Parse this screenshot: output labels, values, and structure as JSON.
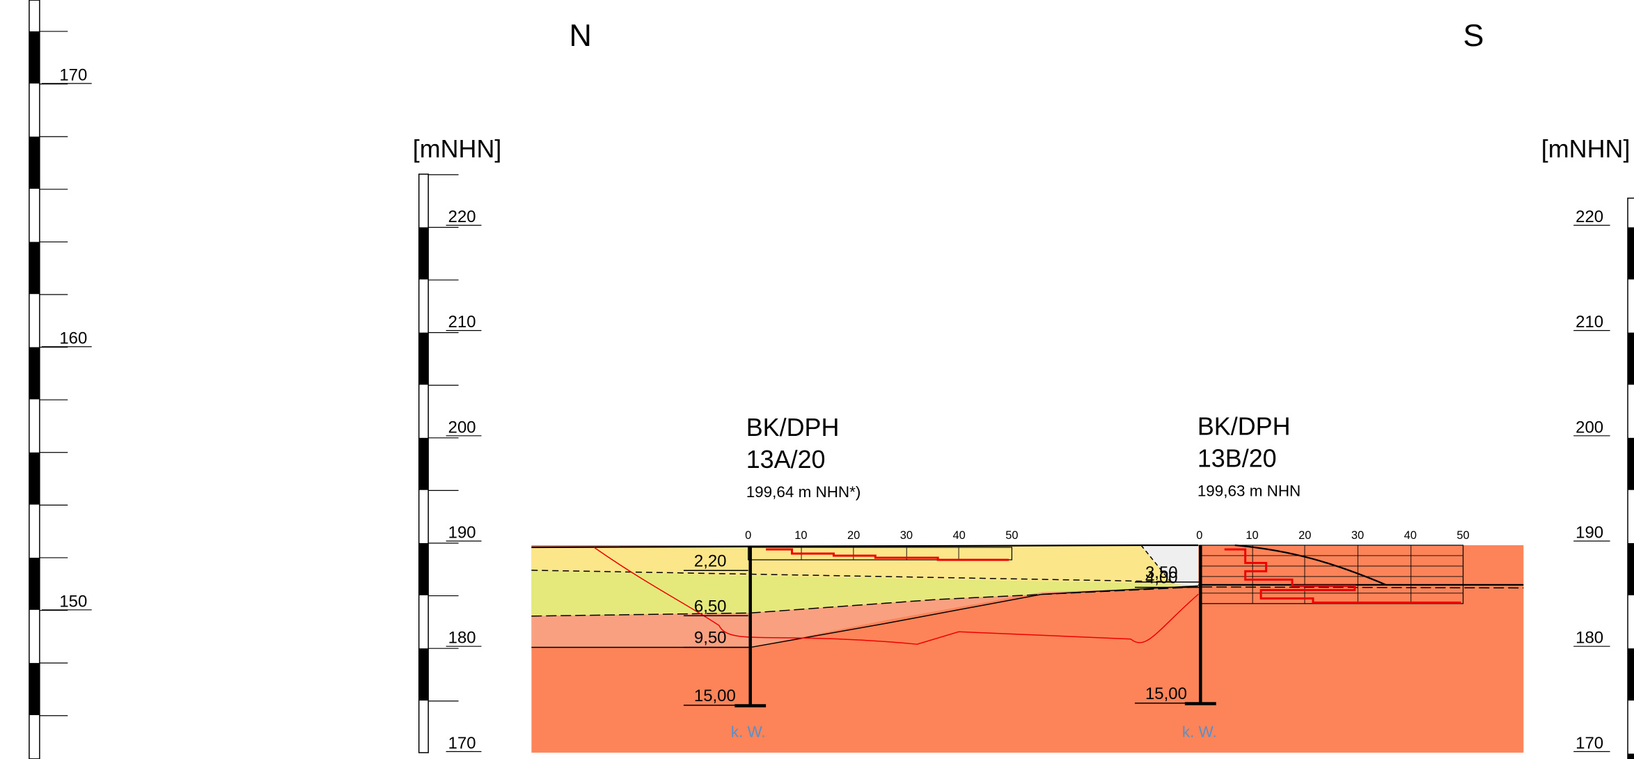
{
  "header": {
    "north": "N",
    "south": "S"
  },
  "scales": [
    {
      "labels": [
        170,
        160,
        150
      ]
    },
    {
      "unit": "[mNHN]",
      "labels": [
        220,
        210,
        200,
        190,
        180,
        170
      ]
    },
    {
      "unit": "[mNHN]",
      "labels": [
        220,
        210,
        200,
        190,
        180,
        170
      ]
    }
  ],
  "boreholes": [
    {
      "kind": "BK/DPH",
      "id": "13A/20",
      "elevation": "199,64 m NHN*)",
      "dph_ticks": [
        0,
        10,
        20,
        30,
        40,
        50
      ],
      "depths": [
        "2,20",
        "6,50",
        "9,50",
        "15,00"
      ],
      "groundwater": "k. W."
    },
    {
      "kind": "BK/DPH",
      "id": "13B/20",
      "elevation": "199,63 m NHN",
      "dph_ticks": [
        0,
        10,
        20,
        30,
        40,
        50
      ],
      "depths": [
        "3,50",
        "4,00",
        "15,00"
      ],
      "groundwater": "k. W."
    }
  ]
}
